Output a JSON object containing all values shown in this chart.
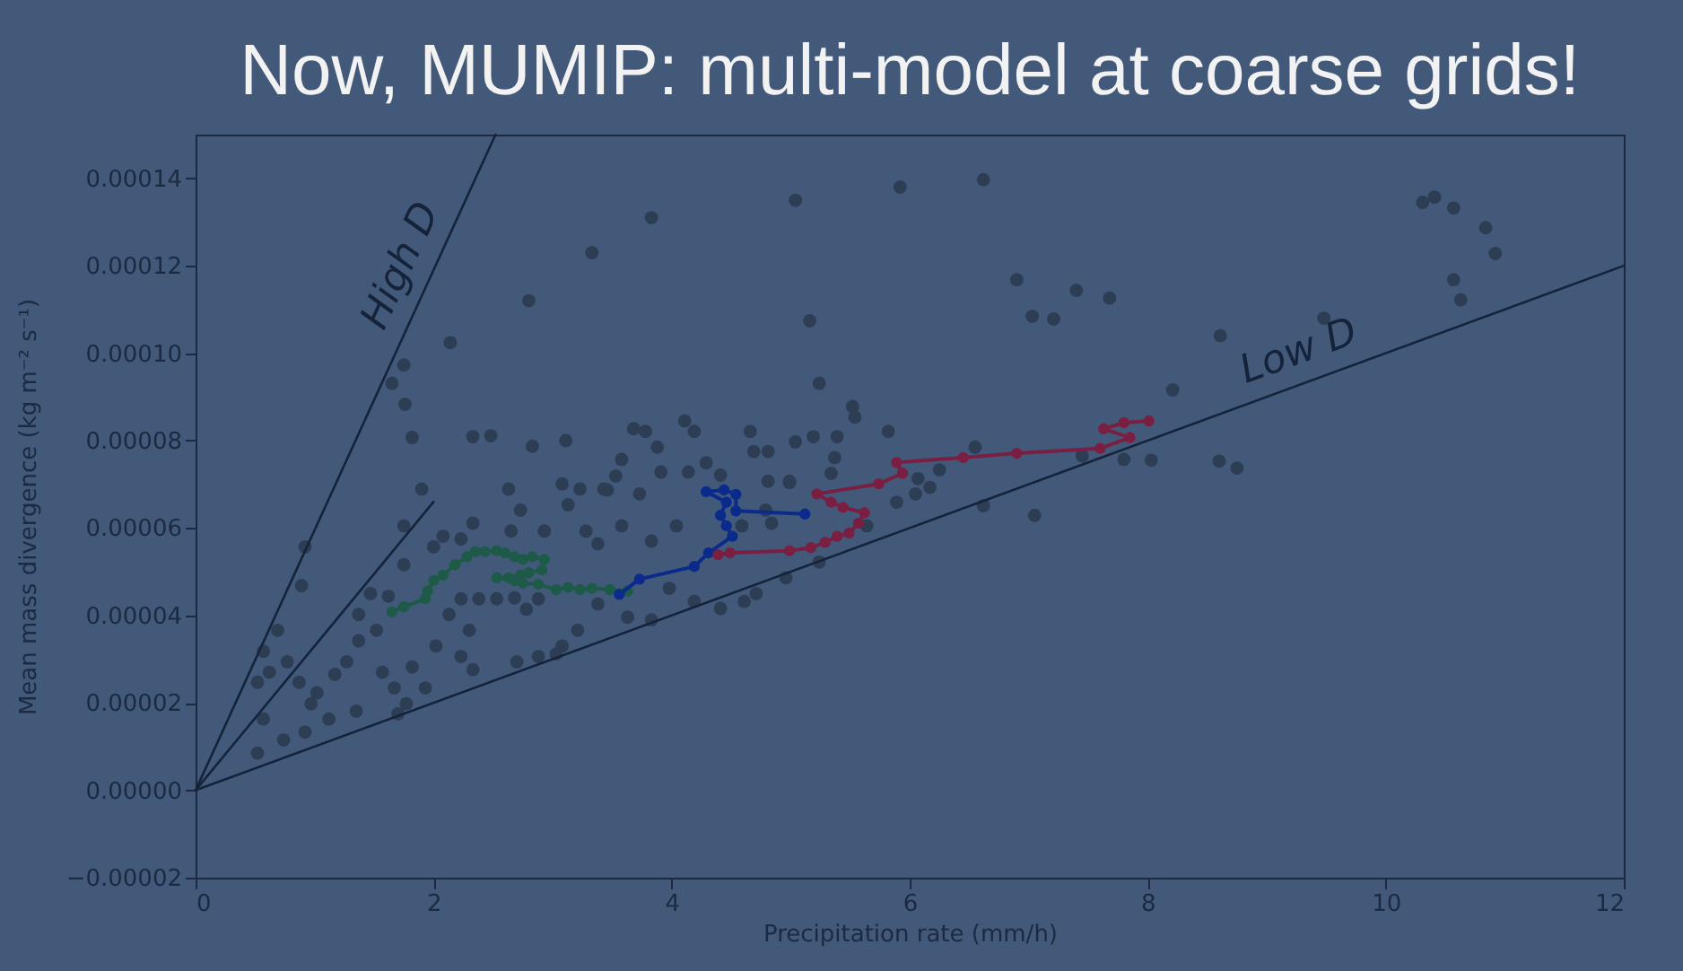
{
  "chart_data": {
    "type": "scatter",
    "title": "Now, MUMIP: multi-model at coarse grids!",
    "xlabel": "Precipitation rate (mm/h)",
    "ylabel": "Mean mass divergence (kg m⁻² s⁻¹)",
    "xlim": [
      0,
      12
    ],
    "xticks": [
      0,
      2,
      4,
      6,
      8,
      10,
      12
    ],
    "ylim": [
      -2e-05,
      0.00015
    ],
    "yticks": [
      {
        "value": -2e-05,
        "label": "−0.00002"
      },
      {
        "value": 0,
        "label": "0.00000"
      },
      {
        "value": 2e-05,
        "label": "0.00002"
      },
      {
        "value": 4e-05,
        "label": "0.00004"
      },
      {
        "value": 6e-05,
        "label": "0.00006"
      },
      {
        "value": 8e-05,
        "label": "0.00008"
      },
      {
        "value": 0.0001,
        "label": "0.00010"
      },
      {
        "value": 0.00012,
        "label": "0.00012"
      },
      {
        "value": 0.00014,
        "label": "0.00014"
      }
    ],
    "marker": "circle",
    "series": [
      {
        "color": "#2d3d54",
        "x": [
          5.04,
          5.92,
          3.83,
          3.33,
          2.8,
          5.16,
          2.14,
          1.75,
          1.65,
          1.76,
          1.82,
          5.24,
          5.52,
          5.54,
          2.33,
          2.48,
          2.83,
          3.11,
          3.68,
          3.78,
          4.11,
          4.19,
          4.66,
          5.04,
          5.19,
          5.39,
          5.82,
          3.58,
          3.88,
          4.29,
          4.69,
          4.81,
          5.37,
          4.14,
          3.91,
          3.53,
          4.41,
          4.81,
          4.99,
          5.34,
          1.9,
          2.63,
          3.23,
          3.46,
          6.62,
          10.31,
          10.41,
          10.57,
          10.84,
          10.92,
          10.57,
          10.63,
          6.9,
          7.4,
          7.68,
          7.03,
          7.21,
          8.61,
          9.48,
          8.21,
          6.55,
          6.25,
          6.07,
          6.17,
          7.45,
          7.8,
          8.03,
          8.6,
          8.75,
          6.62,
          7.05,
          5.89,
          1.75,
          0.92,
          0.89,
          0.69,
          0.57,
          0.52,
          0.62,
          0.77,
          0.87,
          1.02,
          0.97,
          0.57,
          1.12,
          0.92,
          0.74,
          0.52,
          1.35,
          1.17,
          1.27,
          1.37,
          1.52,
          1.37,
          1.47,
          1.62,
          1.57,
          1.67,
          1.77,
          1.7,
          1.93,
          1.82,
          2.0,
          2.08,
          2.23,
          1.75,
          2.33,
          2.73,
          2.65,
          2.93,
          3.13,
          3.28,
          3.38,
          3.58,
          3.83,
          4.04,
          2.23,
          2.38,
          2.13,
          2.3,
          2.02,
          2.23,
          2.33,
          2.53,
          2.68,
          2.78,
          2.88,
          3.21,
          3.08,
          2.7,
          2.88,
          3.03,
          3.38,
          3.63,
          3.83,
          3.98,
          4.19,
          4.41,
          4.61,
          4.71,
          4.96,
          5.24,
          5.64,
          6.05,
          4.79,
          4.84,
          4.59,
          4.99,
          3.08,
          3.43,
          3.73
        ],
        "values": [
          0.000135,
          0.000138,
          0.000131,
          0.000123,
          0.000112,
          0.0001074,
          0.0001024,
          9.73e-05,
          9.31e-05,
          8.83e-05,
          8.07e-05,
          9.31e-05,
          8.78e-05,
          8.54e-05,
          8.09e-05,
          8.11e-05,
          7.87e-05,
          8e-05,
          8.27e-05,
          8.21e-05,
          8.45e-05,
          8.21e-05,
          8.21e-05,
          7.97e-05,
          8.09e-05,
          8.09e-05,
          8.21e-05,
          7.57e-05,
          7.85e-05,
          7.49e-05,
          7.75e-05,
          7.75e-05,
          7.61e-05,
          7.28e-05,
          7.28e-05,
          7.19e-05,
          7.21e-05,
          7.07e-05,
          7.04e-05,
          7.25e-05,
          6.89e-05,
          6.89e-05,
          6.89e-05,
          6.87e-05,
          0.0001397,
          0.0001345,
          0.0001357,
          0.0001332,
          0.0001287,
          0.0001228,
          0.0001168,
          0.0001122,
          0.0001168,
          0.0001144,
          0.0001126,
          0.0001084,
          0.0001078,
          0.000104,
          0.000108,
          9.16e-05,
          7.85e-05,
          7.33e-05,
          7.13e-05,
          6.93e-05,
          7.65e-05,
          7.57e-05,
          7.55e-05,
          7.53e-05,
          7.37e-05,
          6.51e-05,
          6.29e-05,
          6.59e-05,
          6.05e-05,
          5.57e-05,
          4.68e-05,
          3.66e-05,
          3.18e-05,
          2.47e-05,
          2.7e-05,
          2.94e-05,
          2.47e-05,
          2.23e-05,
          1.98e-05,
          1.63e-05,
          1.63e-05,
          1.33e-05,
          1.15e-05,
          8.5e-06,
          1.81e-05,
          2.65e-05,
          2.94e-05,
          3.42e-05,
          3.66e-05,
          4.02e-05,
          4.5e-05,
          4.44e-05,
          2.7e-05,
          2.34e-05,
          1.98e-05,
          1.75e-05,
          2.34e-05,
          2.82e-05,
          5.57e-05,
          5.81e-05,
          5.75e-05,
          5.16e-05,
          6.11e-05,
          6.41e-05,
          5.93e-05,
          5.93e-05,
          6.53e-05,
          5.93e-05,
          5.64e-05,
          6.05e-05,
          5.7e-05,
          6.05e-05,
          4.38e-05,
          4.38e-05,
          4.02e-05,
          3.66e-05,
          3.3e-05,
          3.06e-05,
          2.76e-05,
          4.38e-05,
          4.4e-05,
          4.14e-05,
          4.38e-05,
          3.66e-05,
          3.3e-05,
          2.94e-05,
          3.06e-05,
          3.12e-05,
          4.26e-05,
          3.96e-05,
          3.9e-05,
          4.62e-05,
          4.32e-05,
          4.16e-05,
          4.32e-05,
          4.5e-05,
          4.86e-05,
          5.22e-05,
          6.05e-05,
          6.78e-05,
          6.41e-05,
          6.11e-05,
          6.05e-05,
          7.07e-05,
          7.01e-05,
          6.89e-05,
          6.78e-05
        ]
      },
      {
        "type": "line",
        "color": "#1d5a48",
        "x": [
          1.65,
          1.75,
          1.93,
          1.95,
          2.0,
          2.08,
          2.18,
          2.28,
          2.35,
          2.43,
          2.53,
          2.6,
          2.68,
          2.75,
          2.83,
          2.93,
          2.91,
          2.8,
          2.73,
          2.63,
          2.53,
          2.68,
          2.75,
          2.88,
          3.03,
          3.13,
          3.23,
          3.33,
          3.48,
          3.63
        ],
        "values": [
          4.08e-05,
          4.2e-05,
          4.38e-05,
          4.56e-05,
          4.8e-05,
          4.92e-05,
          5.16e-05,
          5.34e-05,
          5.46e-05,
          5.46e-05,
          5.48e-05,
          5.43e-05,
          5.34e-05,
          5.28e-05,
          5.34e-05,
          5.28e-05,
          5.04e-05,
          4.98e-05,
          4.92e-05,
          4.86e-05,
          4.86e-05,
          4.8e-05,
          4.74e-05,
          4.71e-05,
          4.59e-05,
          4.64e-05,
          4.59e-05,
          4.62e-05,
          4.59e-05,
          4.56e-05
        ]
      },
      {
        "type": "line",
        "color": "#0b2b8c",
        "x": [
          3.56,
          3.73,
          4.19,
          4.31,
          4.51,
          4.46,
          4.41,
          4.46,
          4.29,
          4.44,
          4.54,
          4.54,
          5.12
        ],
        "values": [
          4.48e-05,
          4.83e-05,
          5.12e-05,
          5.43e-05,
          5.81e-05,
          6.05e-05,
          6.29e-05,
          6.59e-05,
          6.83e-05,
          6.87e-05,
          6.77e-05,
          6.39e-05,
          6.32e-05
        ]
      },
      {
        "type": "line",
        "color": "#7a1f42",
        "x": [
          4.39,
          4.49,
          4.99,
          5.17,
          5.29,
          5.39,
          5.49,
          5.57,
          5.62,
          5.44,
          5.34,
          5.22,
          5.74,
          5.94,
          5.89,
          6.45,
          6.9,
          7.6,
          7.85,
          7.63,
          7.8,
          8.01
        ],
        "values": [
          5.39e-05,
          5.43e-05,
          5.48e-05,
          5.55e-05,
          5.67e-05,
          5.81e-05,
          5.88e-05,
          6.11e-05,
          6.35e-05,
          6.47e-05,
          6.59e-05,
          6.78e-05,
          7.01e-05,
          7.25e-05,
          7.5e-05,
          7.61e-05,
          7.71e-05,
          7.82e-05,
          8.07e-05,
          8.27e-05,
          8.41e-05,
          8.45e-05
        ]
      },
      {
        "type": "line",
        "name": "High D",
        "marker": "none",
        "color": "#15233a",
        "x": [
          0,
          2.52
        ],
        "values": [
          0,
          0.00015
        ]
      },
      {
        "type": "line",
        "name": "Low D",
        "marker": "none",
        "color": "#15233a",
        "x": [
          0,
          12
        ],
        "values": [
          0,
          0.00012
        ]
      },
      {
        "type": "line",
        "marker": "none",
        "color": "#15233a",
        "x": [
          0,
          2
        ],
        "values": [
          0,
          6.6e-05
        ]
      }
    ]
  }
}
